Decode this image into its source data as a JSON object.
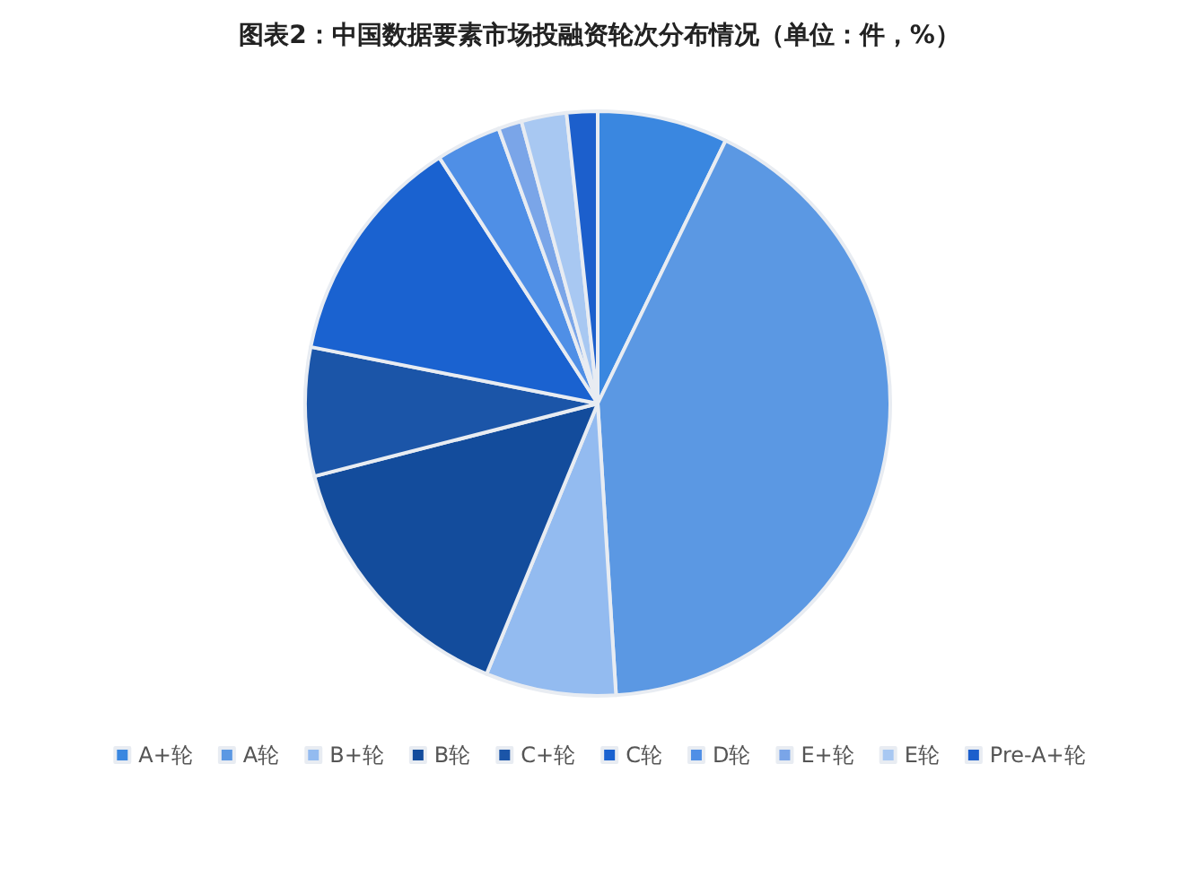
{
  "chart_data": {
    "type": "pie",
    "title": "图表2：中国数据要素市场投融资轮次分布情况（单位：件，%）",
    "categories": [
      "A+轮",
      "A轮",
      "B+轮",
      "B轮",
      "C+轮",
      "C轮",
      "D轮",
      "E+轮",
      "E轮",
      "Pre-A+轮"
    ],
    "values": [
      7.2,
      41.8,
      7.2,
      14.8,
      7.1,
      12.8,
      3.6,
      1.3,
      2.5,
      1.7
    ],
    "colors": [
      "#3a87e0",
      "#5b98e3",
      "#93bbf0",
      "#134c9c",
      "#1b55a8",
      "#1a62d0",
      "#4f8fe6",
      "#7aa5e8",
      "#a8c8f2",
      "#1c5fcc"
    ],
    "legend": "bottom"
  }
}
